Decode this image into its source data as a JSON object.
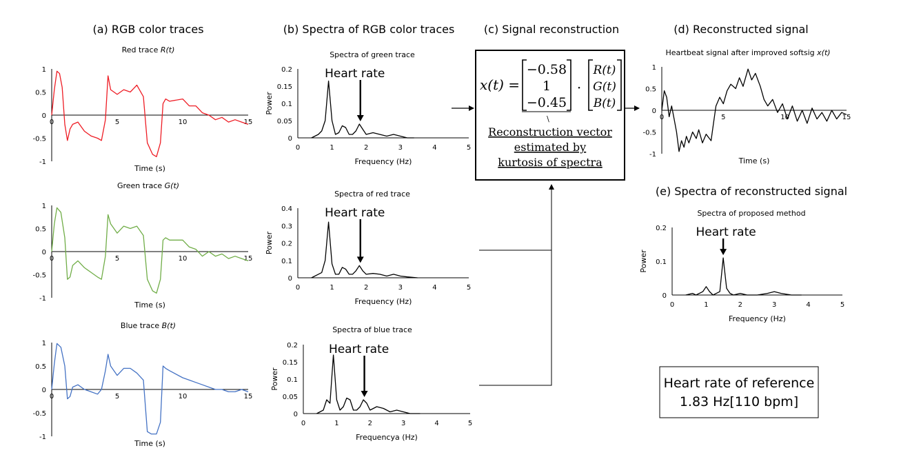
{
  "sections": {
    "a": "(a) RGB color traces",
    "b": "(b) Spectra of RGB color traces",
    "c": "(c) Signal reconstruction",
    "d": "(d) Reconstructed signal",
    "e": "(e) Spectra of reconstructed signal"
  },
  "equation": {
    "lhs": "x(t) =",
    "vector": [
      "−0.58",
      "1",
      "−0.45"
    ],
    "dot": "·",
    "rgb": [
      "R(t)",
      "G(t)",
      "B(t)"
    ],
    "backslash": "\\",
    "note_lines": [
      "Reconstruction vector",
      "estimated by",
      "kurtosis of spectra"
    ]
  },
  "reference_box": {
    "line1": "Heart rate of reference",
    "line2": "1.83 Hz[110 bpm]"
  },
  "heart_rate_label": "Heart rate",
  "colors": {
    "red": "#ee1c24",
    "green": "#70ad47",
    "blue": "#4472c4",
    "black": "#000000"
  },
  "chart_data": [
    {
      "id": "red-trace",
      "type": "line",
      "color": "#ee1c24",
      "title": "Red trace",
      "title_var": "R(t)",
      "xlabel": "Time (s)",
      "ylabel": "",
      "xlim": [
        0,
        15
      ],
      "ylim": [
        -1,
        1
      ],
      "xticks": [
        "0",
        "5",
        "10",
        "15"
      ],
      "yticks": [
        "1",
        "0.5",
        "0",
        "-0.5",
        "-1"
      ],
      "x": [
        0,
        0.2,
        0.4,
        0.6,
        0.8,
        1.0,
        1.2,
        1.4,
        1.6,
        2.0,
        2.5,
        3.0,
        3.5,
        3.8,
        4.1,
        4.3,
        4.5,
        5.0,
        5.5,
        6.0,
        6.5,
        7.0,
        7.3,
        7.7,
        8.0,
        8.3,
        8.5,
        8.7,
        9.0,
        10,
        10.5,
        11,
        11.5,
        12,
        12.5,
        13,
        13.5,
        14,
        14.5,
        15
      ],
      "y": [
        0,
        0.55,
        0.95,
        0.9,
        0.6,
        -0.2,
        -0.55,
        -0.3,
        -0.2,
        -0.15,
        -0.35,
        -0.45,
        -0.5,
        -0.55,
        -0.1,
        0.85,
        0.55,
        0.45,
        0.55,
        0.5,
        0.65,
        0.4,
        -0.6,
        -0.85,
        -0.9,
        -0.6,
        0.25,
        0.35,
        0.3,
        0.35,
        0.2,
        0.2,
        0.05,
        0.0,
        -0.1,
        -0.05,
        -0.15,
        -0.1,
        -0.15,
        -0.2
      ]
    },
    {
      "id": "green-trace",
      "type": "line",
      "color": "#70ad47",
      "title": "Green trace",
      "title_var": "G(t)",
      "xlabel": "Time (s)",
      "ylabel": "",
      "xlim": [
        0,
        15
      ],
      "ylim": [
        -1,
        1
      ],
      "xticks": [
        "0",
        "5",
        "10",
        "15"
      ],
      "yticks": [
        "1",
        "0.5",
        "0",
        "-0.5",
        "-1"
      ],
      "x": [
        0,
        0.2,
        0.4,
        0.7,
        1.0,
        1.2,
        1.4,
        1.6,
        2.0,
        2.5,
        3.0,
        3.5,
        3.8,
        4.1,
        4.3,
        4.5,
        5.0,
        5.5,
        6.0,
        6.5,
        7.0,
        7.3,
        7.7,
        8.0,
        8.3,
        8.5,
        8.7,
        9.0,
        10,
        10.5,
        11,
        11.5,
        12,
        12.5,
        13,
        13.5,
        14,
        14.5,
        15
      ],
      "y": [
        0,
        0.6,
        0.95,
        0.85,
        0.3,
        -0.6,
        -0.55,
        -0.3,
        -0.2,
        -0.35,
        -0.45,
        -0.55,
        -0.6,
        -0.1,
        0.8,
        0.6,
        0.4,
        0.55,
        0.5,
        0.55,
        0.35,
        -0.6,
        -0.85,
        -0.9,
        -0.6,
        0.25,
        0.3,
        0.25,
        0.25,
        0.1,
        0.05,
        -0.1,
        0.0,
        -0.1,
        -0.05,
        -0.15,
        -0.1,
        -0.15,
        -0.2
      ]
    },
    {
      "id": "blue-trace",
      "type": "line",
      "color": "#4472c4",
      "title": "Blue trace",
      "title_var": "B(t)",
      "xlabel": "Time (s)",
      "ylabel": "",
      "xlim": [
        0,
        15
      ],
      "ylim": [
        -1,
        1
      ],
      "xticks": [
        "0",
        "5",
        "10",
        "15"
      ],
      "yticks": [
        "1",
        "0.5",
        "0",
        "-0.5",
        "-1"
      ],
      "x": [
        0,
        0.2,
        0.4,
        0.7,
        1.0,
        1.2,
        1.4,
        1.6,
        2.0,
        2.5,
        3.0,
        3.5,
        3.8,
        4.1,
        4.3,
        4.5,
        5.0,
        5.5,
        6.0,
        6.5,
        7.0,
        7.3,
        7.6,
        8.0,
        8.3,
        8.5,
        8.7,
        9.0,
        10,
        10.5,
        11,
        11.5,
        12,
        12.5,
        13,
        13.5,
        14,
        14.5,
        15
      ],
      "y": [
        0,
        0.55,
        0.98,
        0.9,
        0.5,
        -0.2,
        -0.15,
        0.05,
        0.1,
        0.0,
        -0.05,
        -0.1,
        0.0,
        0.4,
        0.75,
        0.5,
        0.3,
        0.45,
        0.45,
        0.35,
        0.2,
        -0.9,
        -0.95,
        -0.95,
        -0.7,
        0.5,
        0.45,
        0.4,
        0.25,
        0.2,
        0.15,
        0.1,
        0.05,
        0.0,
        0.0,
        -0.05,
        -0.05,
        0.0,
        -0.05
      ]
    },
    {
      "id": "green-spectrum",
      "type": "line",
      "color": "#000000",
      "title": "Spectra of green trace",
      "xlabel": "Frequency (Hz)",
      "ylabel": "Power",
      "xlim": [
        0,
        5
      ],
      "ylim": [
        0,
        0.2
      ],
      "xticks": [
        "0",
        "1",
        "2",
        "3",
        "4",
        "5"
      ],
      "yticks": [
        "0.2",
        "0.15",
        "0.1",
        "0.05",
        "0"
      ],
      "x": [
        0.4,
        0.6,
        0.7,
        0.8,
        0.9,
        1.0,
        1.1,
        1.2,
        1.3,
        1.4,
        1.5,
        1.6,
        1.7,
        1.8,
        1.9,
        2.0,
        2.2,
        2.4,
        2.6,
        2.8,
        3.0,
        3.2,
        3.4
      ],
      "y": [
        0.0,
        0.01,
        0.02,
        0.05,
        0.165,
        0.05,
        0.01,
        0.015,
        0.035,
        0.03,
        0.01,
        0.01,
        0.02,
        0.04,
        0.025,
        0.01,
        0.015,
        0.01,
        0.005,
        0.01,
        0.005,
        0.0,
        0.0
      ],
      "annotation": {
        "text": "Heart rate",
        "x": 1.83
      }
    },
    {
      "id": "red-spectrum",
      "type": "line",
      "color": "#000000",
      "title": "Spectra of red trace",
      "xlabel": "Frequency (Hz)",
      "ylabel": "Power",
      "xlim": [
        0,
        5
      ],
      "ylim": [
        0,
        0.4
      ],
      "xticks": [
        "0",
        "1",
        "2",
        "3",
        "4",
        "5"
      ],
      "yticks": [
        "0.4",
        "0.3",
        "0.2",
        "0.1",
        "0"
      ],
      "x": [
        0.4,
        0.6,
        0.7,
        0.8,
        0.9,
        1.0,
        1.1,
        1.2,
        1.3,
        1.4,
        1.5,
        1.6,
        1.7,
        1.8,
        1.9,
        2.0,
        2.2,
        2.4,
        2.6,
        2.8,
        3.0,
        3.2,
        3.5
      ],
      "y": [
        0.0,
        0.02,
        0.03,
        0.1,
        0.32,
        0.08,
        0.02,
        0.02,
        0.06,
        0.05,
        0.02,
        0.02,
        0.04,
        0.07,
        0.04,
        0.02,
        0.025,
        0.02,
        0.01,
        0.02,
        0.01,
        0.005,
        0.0
      ],
      "annotation": {
        "text": "Heart rate",
        "x": 1.83
      }
    },
    {
      "id": "blue-spectrum",
      "type": "line",
      "color": "#000000",
      "title": "Spectra of blue trace",
      "xlabel": "Frequencya (Hz)",
      "ylabel": "Power",
      "xlim": [
        0,
        5
      ],
      "ylim": [
        0,
        0.2
      ],
      "xticks": [
        "0",
        "1",
        "2",
        "3",
        "4",
        "5"
      ],
      "yticks": [
        "0.2",
        "0.15",
        "0.1",
        "0.05",
        "0"
      ],
      "x": [
        0.4,
        0.6,
        0.7,
        0.8,
        0.9,
        1.0,
        1.1,
        1.2,
        1.3,
        1.4,
        1.5,
        1.6,
        1.7,
        1.8,
        1.9,
        2.0,
        2.2,
        2.4,
        2.6,
        2.8,
        3.0,
        3.2,
        3.5
      ],
      "y": [
        0.0,
        0.01,
        0.04,
        0.03,
        0.17,
        0.04,
        0.01,
        0.02,
        0.045,
        0.04,
        0.01,
        0.01,
        0.02,
        0.04,
        0.03,
        0.01,
        0.02,
        0.015,
        0.005,
        0.01,
        0.005,
        0.0,
        0.0
      ],
      "annotation": {
        "text": "Heart rate",
        "x": 1.83
      }
    },
    {
      "id": "reconstructed-signal",
      "type": "line",
      "color": "#000000",
      "title": "Heartbeat signal after improved softsig",
      "title_var": "x(t)",
      "xlabel": "Time (s)",
      "ylabel": "",
      "xlim": [
        0,
        15
      ],
      "ylim": [
        -1,
        1
      ],
      "xticks": [
        "0",
        "5",
        "10",
        "15"
      ],
      "yticks": [
        "1",
        "0.5",
        "0",
        "-0.5",
        "-1"
      ],
      "x": [
        0,
        0.2,
        0.4,
        0.6,
        0.8,
        1.0,
        1.2,
        1.4,
        1.6,
        1.8,
        2.0,
        2.2,
        2.5,
        2.8,
        3.0,
        3.3,
        3.6,
        4.0,
        4.2,
        4.4,
        4.7,
        5.0,
        5.3,
        5.6,
        6.0,
        6.3,
        6.6,
        7.0,
        7.3,
        7.6,
        8.0,
        8.3,
        8.6,
        9.0,
        9.4,
        9.8,
        10.2,
        10.6,
        11.0,
        11.4,
        11.8,
        12.2,
        12.6,
        13.0,
        13.4,
        13.8,
        14.2,
        14.6,
        15
      ],
      "y": [
        0.0,
        0.45,
        0.3,
        -0.15,
        0.1,
        -0.2,
        -0.5,
        -0.95,
        -0.7,
        -0.85,
        -0.6,
        -0.75,
        -0.5,
        -0.65,
        -0.45,
        -0.75,
        -0.55,
        -0.7,
        -0.3,
        0.1,
        0.3,
        0.15,
        0.45,
        0.6,
        0.5,
        0.75,
        0.55,
        0.95,
        0.7,
        0.85,
        0.55,
        0.25,
        0.1,
        0.25,
        -0.05,
        0.15,
        -0.2,
        0.1,
        -0.25,
        0.0,
        -0.3,
        0.05,
        -0.2,
        -0.05,
        -0.25,
        0.0,
        -0.2,
        -0.05,
        -0.1
      ]
    },
    {
      "id": "reconstructed-spectrum",
      "type": "line",
      "color": "#000000",
      "title": "Spectra of proposed method",
      "xlabel": "Frequency (Hz)",
      "ylabel": "Power",
      "xlim": [
        0,
        5
      ],
      "ylim": [
        0,
        0.2
      ],
      "xticks": [
        "0",
        "1",
        "2",
        "3",
        "4",
        "5"
      ],
      "yticks": [
        "0.2",
        "0.1",
        "0"
      ],
      "x": [
        0.4,
        0.6,
        0.7,
        0.8,
        0.9,
        1.0,
        1.1,
        1.2,
        1.3,
        1.4,
        1.5,
        1.6,
        1.7,
        1.8,
        2.0,
        2.2,
        2.5,
        2.8,
        3.0,
        3.2,
        3.5,
        3.8
      ],
      "y": [
        0.0,
        0.005,
        0.0,
        0.005,
        0.01,
        0.025,
        0.01,
        0.0,
        0.005,
        0.01,
        0.11,
        0.02,
        0.005,
        0.0,
        0.005,
        0.0,
        0.0,
        0.005,
        0.01,
        0.005,
        0.0,
        0.0
      ],
      "annotation": {
        "text": "Heart rate",
        "x": 1.5
      }
    }
  ]
}
